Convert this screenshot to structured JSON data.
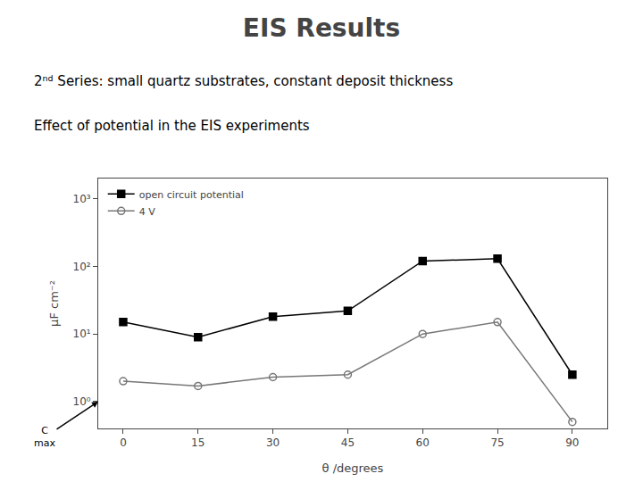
{
  "chart_data": {
    "type": "line",
    "title": "EIS Results",
    "subtitle": "2ⁿᵈ Series: small quartz substrates, constant deposit thickness",
    "annotations": [
      {
        "text": "Effect of potential in the EIS experiments"
      },
      {
        "text": "C\nmax",
        "y": 1
      }
    ],
    "x": [
      0,
      15,
      30,
      45,
      60,
      75,
      90
    ],
    "series": [
      {
        "name": "open circuit potential",
        "color": "#000000",
        "marker": "square",
        "values": [
          15,
          9,
          18,
          22,
          120,
          130,
          2.5
        ]
      },
      {
        "name": "4 V",
        "color": "#777777",
        "marker": "circle-open",
        "values": [
          2.0,
          1.7,
          2.3,
          2.5,
          10.0,
          15.0,
          0.5
        ]
      }
    ],
    "xlabel": "θ /degrees",
    "ylabel": "μF cm⁻²",
    "xlim": [
      -5,
      97
    ],
    "xticks": [
      0,
      15,
      30,
      45,
      60,
      75,
      90
    ],
    "ylim": [
      0.4,
      2000
    ],
    "yticks": [
      {
        "value": 1,
        "label": "10⁰"
      },
      {
        "value": 10,
        "label": "10¹"
      },
      {
        "value": 100,
        "label": "10²"
      },
      {
        "value": 1000,
        "label": "10³"
      }
    ],
    "log": "y",
    "grid": false,
    "legend": "upper left"
  }
}
